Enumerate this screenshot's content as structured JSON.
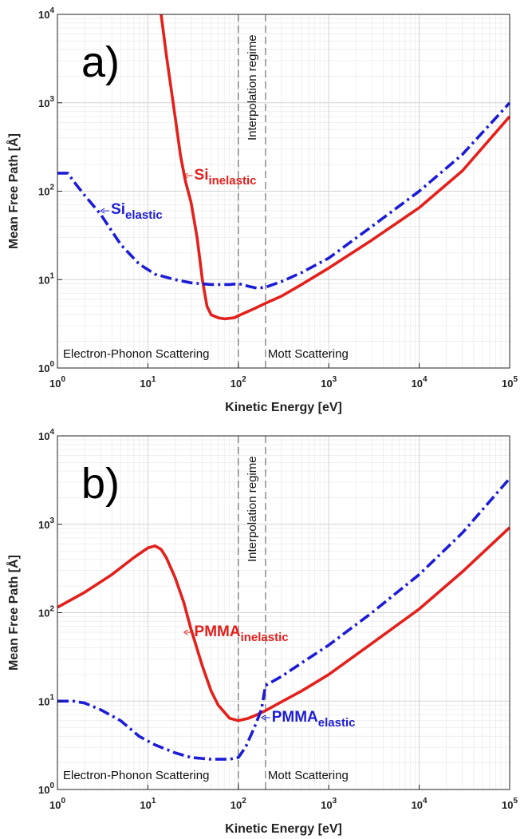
{
  "chart_data": [
    {
      "type": "line",
      "panel_label": "a)",
      "xlabel": "Kinetic Energy [eV]",
      "ylabel": "Mean Free Path [Å]",
      "x_scale": "log",
      "y_scale": "log",
      "xlim": [
        1,
        100000
      ],
      "ylim": [
        1,
        10000
      ],
      "grid": true,
      "x_ticks": [
        {
          "value": 1,
          "base": "10",
          "exp": "0"
        },
        {
          "value": 10,
          "base": "10",
          "exp": "1"
        },
        {
          "value": 100,
          "base": "10",
          "exp": "2"
        },
        {
          "value": 1000,
          "base": "10",
          "exp": "3"
        },
        {
          "value": 10000,
          "base": "10",
          "exp": "4"
        },
        {
          "value": 100000,
          "base": "10",
          "exp": "5"
        }
      ],
      "y_ticks": [
        {
          "value": 1,
          "base": "10",
          "exp": "0"
        },
        {
          "value": 10,
          "base": "10",
          "exp": "1"
        },
        {
          "value": 100,
          "base": "10",
          "exp": "2"
        },
        {
          "value": 1000,
          "base": "10",
          "exp": "3"
        },
        {
          "value": 10000,
          "base": "10",
          "exp": "4"
        }
      ],
      "vlines": [
        100,
        200
      ],
      "vline_label": "Interpolation regime",
      "region_labels": {
        "left": "Electron-Phonon Scattering",
        "right": "Mott Scattering"
      },
      "series": [
        {
          "id": "inelastic",
          "color": "#e3201b",
          "dash": "solid",
          "annotation": {
            "main": "Si",
            "sub": "inelastic",
            "x": 25,
            "y": 150
          },
          "points": [
            [
              14,
              10000
            ],
            [
              16,
              3500
            ],
            [
              18,
              1500
            ],
            [
              20,
              700
            ],
            [
              23,
              250
            ],
            [
              26,
              130
            ],
            [
              30,
              75
            ],
            [
              35,
              30
            ],
            [
              40,
              10
            ],
            [
              45,
              5
            ],
            [
              50,
              4
            ],
            [
              60,
              3.7
            ],
            [
              70,
              3.6
            ],
            [
              90,
              3.7
            ],
            [
              100,
              3.9
            ],
            [
              150,
              4.7
            ],
            [
              200,
              5.4
            ],
            [
              300,
              6.5
            ],
            [
              500,
              8.8
            ],
            [
              1000,
              13.5
            ],
            [
              3000,
              28
            ],
            [
              10000,
              65
            ],
            [
              30000,
              170
            ],
            [
              100000,
              700
            ]
          ]
        },
        {
          "id": "elastic",
          "color": "#1c1cd6",
          "dash": "dashdot",
          "annotation": {
            "main": "Si",
            "sub": "elastic",
            "x": 3,
            "y": 60
          },
          "points": [
            [
              1,
              160
            ],
            [
              1.3,
              160
            ],
            [
              1.6,
              120
            ],
            [
              2,
              90
            ],
            [
              3,
              55
            ],
            [
              5,
              25
            ],
            [
              8,
              15
            ],
            [
              12,
              11.5
            ],
            [
              20,
              10
            ],
            [
              30,
              9.2
            ],
            [
              50,
              8.8
            ],
            [
              80,
              8.8
            ],
            [
              100,
              9
            ],
            [
              130,
              8.4
            ],
            [
              160,
              8
            ],
            [
              200,
              8.2
            ],
            [
              300,
              9.5
            ],
            [
              500,
              12
            ],
            [
              1000,
              17.5
            ],
            [
              3000,
              40
            ],
            [
              10000,
              100
            ],
            [
              30000,
              260
            ],
            [
              100000,
              1000
            ]
          ]
        }
      ]
    },
    {
      "type": "line",
      "panel_label": "b)",
      "xlabel": "Kinetic Energy [eV]",
      "ylabel": "Mean Free Path [Å]",
      "x_scale": "log",
      "y_scale": "log",
      "xlim": [
        1,
        100000
      ],
      "ylim": [
        1,
        10000
      ],
      "grid": true,
      "x_ticks": [
        {
          "value": 1,
          "base": "10",
          "exp": "0"
        },
        {
          "value": 10,
          "base": "10",
          "exp": "1"
        },
        {
          "value": 100,
          "base": "10",
          "exp": "2"
        },
        {
          "value": 1000,
          "base": "10",
          "exp": "3"
        },
        {
          "value": 10000,
          "base": "10",
          "exp": "4"
        },
        {
          "value": 100000,
          "base": "10",
          "exp": "5"
        }
      ],
      "y_ticks": [
        {
          "value": 1,
          "base": "10",
          "exp": "0"
        },
        {
          "value": 10,
          "base": "10",
          "exp": "1"
        },
        {
          "value": 100,
          "base": "10",
          "exp": "2"
        },
        {
          "value": 1000,
          "base": "10",
          "exp": "3"
        },
        {
          "value": 10000,
          "base": "10",
          "exp": "4"
        }
      ],
      "vlines": [
        100,
        200
      ],
      "vline_label": "Interpolation regime",
      "region_labels": {
        "left": "Electron-Phonon Scattering",
        "right": "Mott Scattering"
      },
      "series": [
        {
          "id": "inelastic",
          "color": "#e3201b",
          "dash": "solid",
          "annotation": {
            "main": "PMMA",
            "sub": "inelastic",
            "x": 25,
            "y": 60
          },
          "points": [
            [
              1,
              115
            ],
            [
              2,
              170
            ],
            [
              4,
              270
            ],
            [
              7,
              420
            ],
            [
              10,
              540
            ],
            [
              12,
              570
            ],
            [
              14,
              520
            ],
            [
              16,
              420
            ],
            [
              20,
              250
            ],
            [
              25,
              130
            ],
            [
              30,
              65
            ],
            [
              40,
              25
            ],
            [
              50,
              13
            ],
            [
              60,
              9
            ],
            [
              80,
              6.4
            ],
            [
              100,
              6
            ],
            [
              130,
              6.4
            ],
            [
              160,
              7
            ],
            [
              200,
              7.8
            ],
            [
              300,
              9.8
            ],
            [
              500,
              13
            ],
            [
              1000,
              20
            ],
            [
              3000,
              45
            ],
            [
              10000,
              110
            ],
            [
              30000,
              290
            ],
            [
              100000,
              920
            ]
          ]
        },
        {
          "id": "elastic",
          "color": "#1c1cd6",
          "dash": "dashdot",
          "annotation": {
            "main": "PMMA",
            "sub": "elastic",
            "x": 180,
            "y": 6.5
          },
          "points": [
            [
              1,
              10
            ],
            [
              1.5,
              10
            ],
            [
              2,
              9.5
            ],
            [
              3,
              8
            ],
            [
              5,
              6
            ],
            [
              8,
              4
            ],
            [
              12,
              3.2
            ],
            [
              20,
              2.6
            ],
            [
              30,
              2.3
            ],
            [
              50,
              2.2
            ],
            [
              80,
              2.2
            ],
            [
              100,
              2.3
            ],
            [
              120,
              3
            ],
            [
              150,
              5
            ],
            [
              180,
              8
            ],
            [
              200,
              15
            ],
            [
              300,
              19
            ],
            [
              500,
              27
            ],
            [
              1000,
              43
            ],
            [
              3000,
              100
            ],
            [
              10000,
              270
            ],
            [
              30000,
              800
            ],
            [
              100000,
              3300
            ]
          ]
        }
      ]
    }
  ]
}
